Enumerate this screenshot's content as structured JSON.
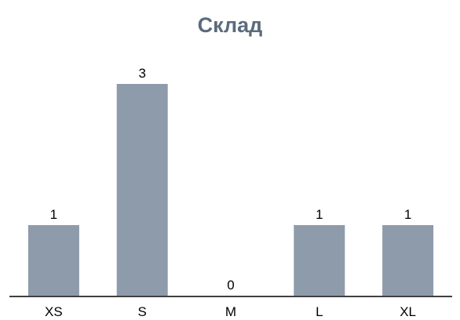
{
  "chart_data": {
    "type": "bar",
    "title": "Склад",
    "categories": [
      "XS",
      "S",
      "M",
      "L",
      "XL"
    ],
    "values": [
      1,
      3,
      0,
      1,
      1
    ],
    "xlabel": "",
    "ylabel": "",
    "ylim": [
      0,
      3
    ],
    "grid": false,
    "legend": "none",
    "data_labels": true,
    "colors": {
      "bar": "#8e9bab",
      "title": "#5a6b7d",
      "axis": "#000000",
      "label": "#000000"
    }
  }
}
